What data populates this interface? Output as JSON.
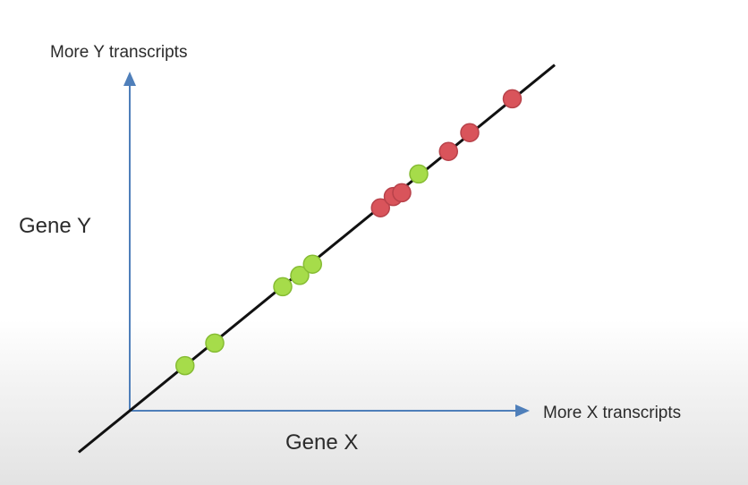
{
  "chart_data": {
    "type": "scatter",
    "x_axis_title": "Gene X",
    "y_axis_title": "Gene Y",
    "x_arrow_label": "More X transcripts",
    "y_arrow_label": "More Y transcripts",
    "xlim": [
      0,
      100
    ],
    "ylim": [
      0,
      100
    ],
    "grid": false,
    "legend": "none",
    "trend_line": {
      "slope": 0.92,
      "intercept": 0,
      "x_range": [
        -12,
        100
      ],
      "color": "#111111"
    },
    "points": [
      {
        "x": 13,
        "y": 12,
        "color": "#a6dc4a"
      },
      {
        "x": 20,
        "y": 18,
        "color": "#a6dc4a"
      },
      {
        "x": 36,
        "y": 33,
        "color": "#a6dc4a"
      },
      {
        "x": 40,
        "y": 36,
        "color": "#a6dc4a"
      },
      {
        "x": 43,
        "y": 39,
        "color": "#a6dc4a"
      },
      {
        "x": 59,
        "y": 54,
        "color": "#d9545b"
      },
      {
        "x": 62,
        "y": 57,
        "color": "#d9545b"
      },
      {
        "x": 64,
        "y": 58,
        "color": "#d9545b"
      },
      {
        "x": 68,
        "y": 63,
        "color": "#a6dc4a"
      },
      {
        "x": 75,
        "y": 69,
        "color": "#d9545b"
      },
      {
        "x": 80,
        "y": 74,
        "color": "#d9545b"
      },
      {
        "x": 90,
        "y": 83,
        "color": "#d9545b"
      }
    ]
  }
}
